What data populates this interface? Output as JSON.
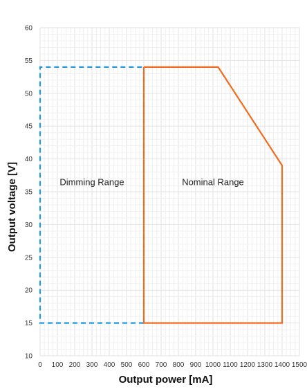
{
  "chart_data": {
    "type": "line",
    "title": "",
    "xlabel": "Output power [mA]",
    "ylabel": "Output voltage [V]",
    "xlim": [
      0,
      1500
    ],
    "ylim": [
      10,
      60
    ],
    "x_ticks": [
      0,
      100,
      200,
      300,
      400,
      500,
      600,
      700,
      800,
      900,
      1000,
      1100,
      1200,
      1300,
      1400,
      1500
    ],
    "y_ticks": [
      10,
      15,
      20,
      25,
      30,
      35,
      40,
      45,
      50,
      55,
      60
    ],
    "grid": true,
    "series": [
      {
        "style": "dashed",
        "color": "#1e9be6",
        "points": [
          [
            600,
            15
          ],
          [
            0,
            15
          ],
          [
            0,
            54
          ],
          [
            600,
            54
          ],
          [
            600,
            15
          ]
        ]
      },
      {
        "style": "solid",
        "color": "#f26b1d",
        "points": [
          [
            600,
            54
          ],
          [
            1030,
            54
          ],
          [
            1400,
            39
          ],
          [
            1400,
            15
          ],
          [
            600,
            15
          ],
          [
            600,
            54
          ]
        ]
      }
    ],
    "annotations": [
      {
        "text": "Dimming Range",
        "x": 300,
        "y": 36
      },
      {
        "text": "Nominal Range",
        "x": 1000,
        "y": 36
      }
    ]
  }
}
